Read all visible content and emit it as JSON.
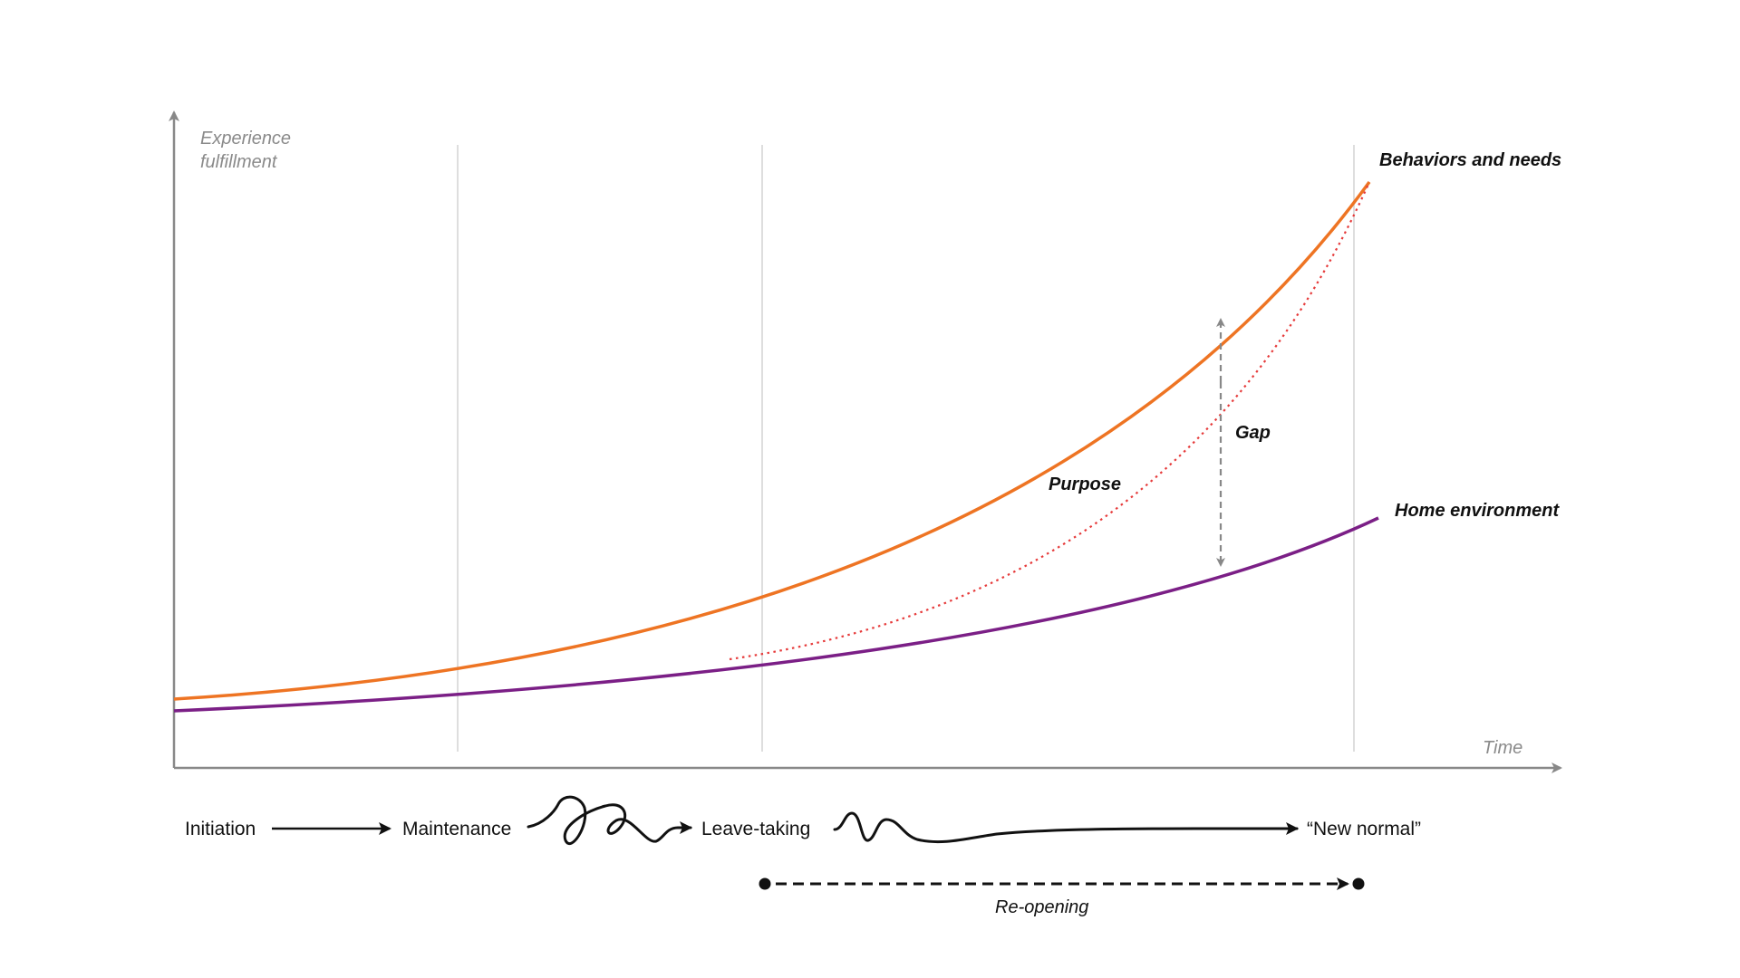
{
  "axes": {
    "y_label_line1": "Experience",
    "y_label_line2": "fulfillment",
    "x_label": "Time"
  },
  "series": {
    "behaviors": {
      "label": "Behaviors and needs",
      "color": "#ee7423"
    },
    "home": {
      "label": "Home environment",
      "color": "#7b1f86"
    },
    "purpose": {
      "label": "Purpose",
      "color": "#e63a3a"
    }
  },
  "annotations": {
    "gap": "Gap"
  },
  "stages": {
    "initiation": "Initiation",
    "maintenance": "Maintenance",
    "leave_taking": "Leave-taking",
    "new_normal": "“New normal”"
  },
  "reopening": {
    "label": "Re-opening"
  },
  "colors": {
    "axis": "#888888",
    "gridline": "#d4d4d4",
    "arrow": "#111111",
    "gap_arrow": "#888888"
  }
}
